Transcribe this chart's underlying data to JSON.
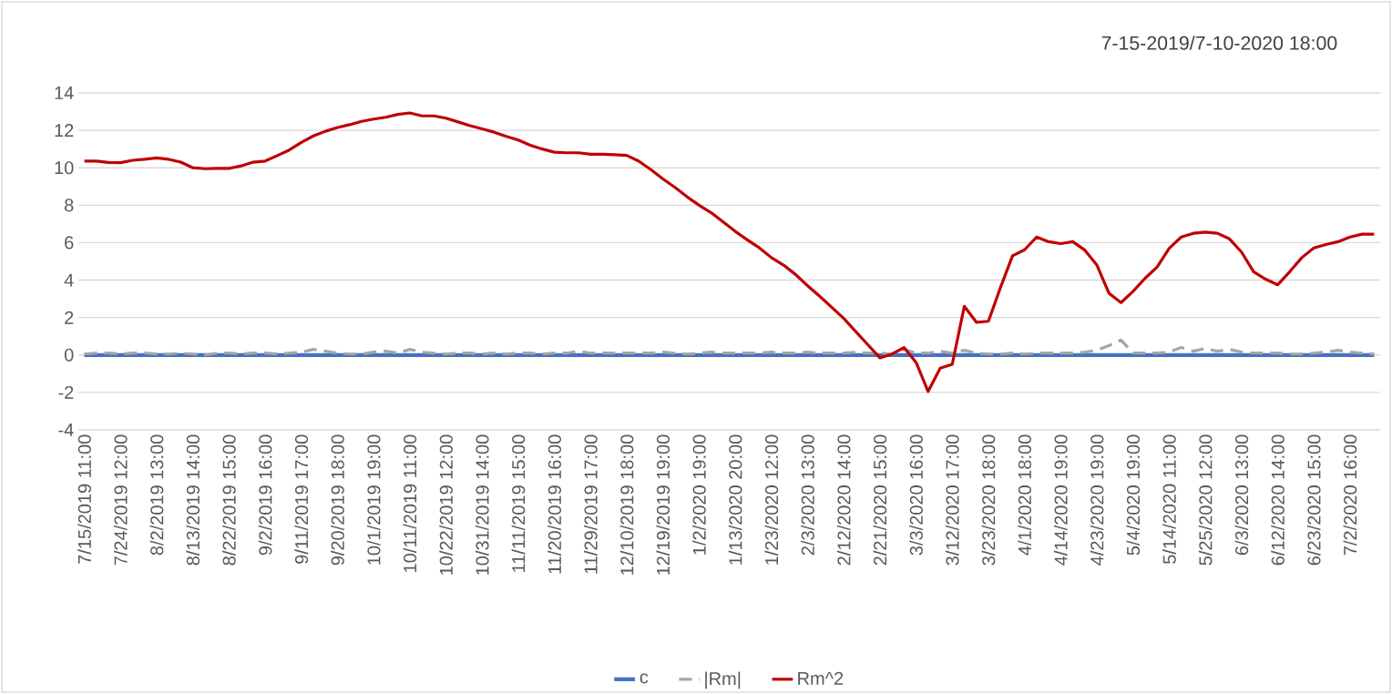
{
  "chart_data": {
    "type": "line",
    "title": "7-15-2019/7-10-2020  18:00",
    "categories": [
      "7/15/2019 11:00",
      null,
      null,
      "7/24/2019 12:00",
      null,
      null,
      "8/2/2019 13:00",
      null,
      null,
      "8/13/2019 14:00",
      null,
      null,
      "8/22/2019 15:00",
      null,
      null,
      "9/2/2019 16:00",
      null,
      null,
      "9/11/2019 17:00",
      null,
      null,
      "9/20/2019 18:00",
      null,
      null,
      "10/1/2019 19:00",
      null,
      null,
      "10/11/2019 11:00",
      null,
      null,
      "10/22/2019 12:00",
      null,
      null,
      "10/31/2019 14:00",
      null,
      null,
      "11/11/2019 15:00",
      null,
      null,
      "11/20/2019 16:00",
      null,
      null,
      "11/29/2019 17:00",
      null,
      null,
      "12/10/2019 18:00",
      null,
      null,
      "12/19/2019 19:00",
      null,
      null,
      "1/2/2020 19:00",
      null,
      null,
      "1/13/2020 20:00",
      null,
      null,
      "1/23/2020 12:00",
      null,
      null,
      "2/3/2020 13:00",
      null,
      null,
      "2/12/2020 14:00",
      null,
      null,
      "2/21/2020 15:00",
      null,
      null,
      "3/3/2020 16:00",
      null,
      null,
      "3/12/2020 17:00",
      null,
      null,
      "3/23/2020 18:00",
      null,
      null,
      "4/1/2020 18:00",
      null,
      null,
      "4/14/2020 19:00",
      null,
      null,
      "4/23/2020 19:00",
      null,
      null,
      "5/4/2020 19:00",
      null,
      null,
      "5/14/2020 11:00",
      null,
      null,
      "5/25/2020 12:00",
      null,
      null,
      "6/3/2020 13:00",
      null,
      null,
      "6/12/2020 14:00",
      null,
      null,
      "6/23/2020 15:00",
      null,
      null,
      "7/2/2020 16:00",
      null,
      null
    ],
    "series": [
      {
        "name": "c",
        "color": "#4472c4",
        "line_style": "solid",
        "values": [
          0,
          0,
          0,
          0,
          0,
          0,
          0,
          0,
          0,
          0,
          0,
          0,
          0,
          0,
          0,
          0,
          0,
          0,
          0,
          0,
          0,
          0,
          0,
          0,
          0,
          0,
          0,
          0,
          0,
          0,
          0,
          0,
          0,
          0,
          0,
          0,
          0,
          0,
          0,
          0,
          0,
          0,
          0,
          0,
          0,
          0,
          0,
          0,
          0,
          0,
          0,
          0,
          0,
          0,
          0,
          0,
          0,
          0,
          0,
          0,
          0,
          0,
          0,
          0,
          0,
          0,
          0,
          0,
          0,
          0,
          0,
          0,
          0,
          0,
          0,
          0,
          0,
          0,
          0,
          0,
          0,
          0,
          0,
          0,
          0,
          0,
          0,
          0,
          0,
          0,
          0,
          0,
          0,
          0,
          0,
          0,
          0,
          0,
          0,
          0,
          0,
          0,
          0,
          0,
          0,
          0,
          0,
          0
        ]
      },
      {
        "name": "|Rm|",
        "color": "#a5a5a5",
        "line_style": "dashed",
        "values": [
          0.05,
          0.1,
          0.1,
          0.05,
          0.1,
          0.1,
          0.05,
          0.05,
          0.1,
          0.05,
          0.0,
          0.1,
          0.1,
          0.05,
          0.1,
          0.1,
          0.05,
          0.1,
          0.15,
          0.3,
          0.2,
          0.1,
          0.05,
          0.05,
          0.15,
          0.2,
          0.1,
          0.3,
          0.15,
          0.1,
          0.05,
          0.1,
          0.1,
          0.05,
          0.1,
          0.05,
          0.1,
          0.1,
          0.05,
          0.1,
          0.1,
          0.2,
          0.1,
          0.1,
          0.1,
          0.1,
          0.1,
          0.1,
          0.15,
          0.1,
          0.05,
          0.1,
          0.15,
          0.1,
          0.1,
          0.1,
          0.1,
          0.15,
          0.1,
          0.1,
          0.15,
          0.1,
          0.1,
          0.1,
          0.15,
          0.1,
          0.1,
          0.05,
          0.3,
          0.1,
          0.1,
          0.2,
          0.1,
          0.25,
          0.1,
          0.05,
          0.05,
          0.1,
          0.05,
          0.1,
          0.1,
          0.1,
          0.1,
          0.15,
          0.25,
          0.5,
          0.8,
          0.1,
          0.1,
          0.1,
          0.15,
          0.4,
          0.2,
          0.35,
          0.2,
          0.3,
          0.15,
          0.1,
          0.1,
          0.1,
          0.05,
          0.05,
          0.1,
          0.15,
          0.25,
          0.15,
          0.1,
          0.05
        ]
      },
      {
        "name": "Rm^2",
        "color": "#c00000",
        "line_style": "solid",
        "values": [
          10.36,
          10.36,
          10.28,
          10.27,
          10.4,
          10.45,
          10.53,
          10.45,
          10.3,
          10.0,
          9.95,
          9.97,
          9.97,
          10.1,
          10.3,
          10.36,
          10.65,
          10.95,
          11.35,
          11.7,
          11.95,
          12.15,
          12.3,
          12.48,
          12.6,
          12.7,
          12.85,
          12.93,
          12.77,
          12.77,
          12.65,
          12.45,
          12.25,
          12.08,
          11.9,
          11.68,
          11.48,
          11.2,
          11.0,
          10.83,
          10.8,
          10.8,
          10.72,
          10.72,
          10.7,
          10.66,
          10.35,
          9.9,
          9.4,
          8.95,
          8.45,
          8.0,
          7.6,
          7.1,
          6.6,
          6.15,
          5.72,
          5.2,
          4.8,
          4.3,
          3.7,
          3.14,
          2.55,
          1.95,
          1.25,
          0.55,
          -0.15,
          0.05,
          0.4,
          -0.4,
          -1.95,
          -0.7,
          -0.5,
          2.6,
          1.75,
          1.8,
          3.6,
          5.3,
          5.62,
          6.3,
          6.05,
          5.95,
          6.05,
          5.6,
          4.8,
          3.3,
          2.8,
          3.4,
          4.1,
          4.7,
          5.7,
          6.3,
          6.5,
          6.56,
          6.5,
          6.2,
          5.5,
          4.45,
          4.05,
          3.75,
          4.45,
          5.2,
          5.72,
          5.9,
          6.05,
          6.3,
          6.45,
          6.45
        ]
      }
    ],
    "ylim": [
      -4,
      14
    ],
    "yticks": [
      -4,
      -2,
      0,
      2,
      4,
      6,
      8,
      10,
      12,
      14
    ],
    "grid": "y",
    "legend": "bottom",
    "marker": "none"
  }
}
